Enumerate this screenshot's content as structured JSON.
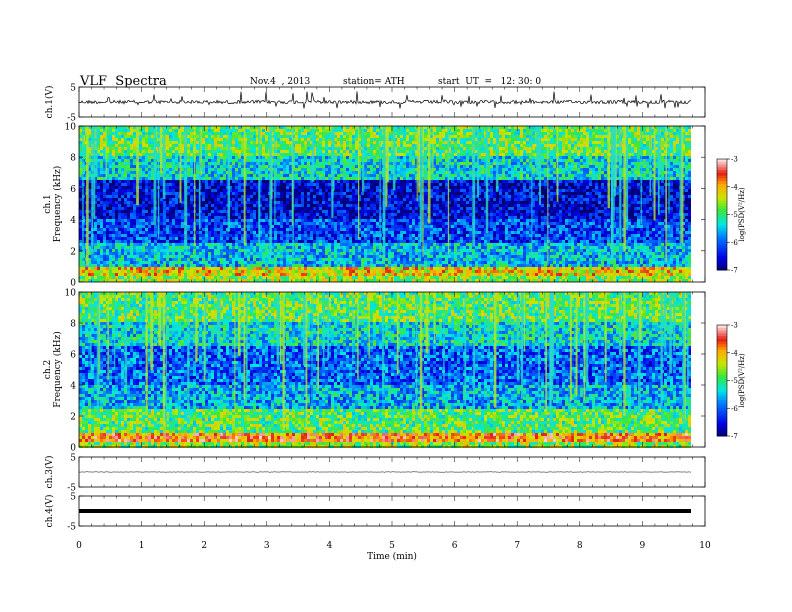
{
  "header": {
    "title": "VLF  Spectra",
    "date": "Nov.4  , 2013",
    "station": "station= ATH",
    "start": "start  UT  =   12: 30: 0"
  },
  "chart_data": [
    {
      "type": "line",
      "panel": "ch1-waveform",
      "ylabel": "ch.1(V)",
      "yticks": [
        "5",
        "-5"
      ],
      "ylim": [
        -5,
        5
      ],
      "xlim": [
        0,
        10
      ],
      "x_extent": 9.8,
      "baseline": 0,
      "color": "#000000"
    },
    {
      "type": "heatmap",
      "panel": "ch1-spectrogram",
      "ylabel": "ch.1",
      "ylabel2": "Frequency  (kHz)",
      "yticks": [
        "0",
        "2",
        "4",
        "6",
        "8",
        "10"
      ],
      "ylim": [
        0,
        10
      ],
      "xlim": [
        0,
        10
      ],
      "x_extent": 9.8,
      "colorbar": {
        "label": "log(PSD(V²/Hz)",
        "ticks": [
          "-3",
          "-4",
          "-5",
          "-6",
          "-7"
        ],
        "range": [
          -7,
          -3
        ]
      }
    },
    {
      "type": "heatmap",
      "panel": "ch2-spectrogram",
      "ylabel": "ch.2",
      "ylabel2": "Frequency  (kHz)",
      "yticks": [
        "0",
        "2",
        "4",
        "6",
        "8",
        "10"
      ],
      "ylim": [
        0,
        10
      ],
      "xlim": [
        0,
        10
      ],
      "x_extent": 9.8,
      "colorbar": {
        "label": "log(PSD(V²/Hz)",
        "ticks": [
          "-3",
          "-4",
          "-5",
          "-6",
          "-7"
        ],
        "range": [
          -7,
          -3
        ]
      }
    },
    {
      "type": "line",
      "panel": "ch3-waveform",
      "ylabel": "ch.3(V)",
      "yticks": [
        "5",
        "-5"
      ],
      "ylim": [
        -5,
        5
      ],
      "xlim": [
        0,
        10
      ],
      "x_extent": 9.8,
      "baseline": 0,
      "color": "#000000"
    },
    {
      "type": "line",
      "panel": "ch4-waveform",
      "ylabel": "ch.4(V)",
      "yticks": [
        "5",
        "-5"
      ],
      "ylim": [
        -5,
        5
      ],
      "xlim": [
        0,
        10
      ],
      "x_extent": 9.8,
      "baseline": 0,
      "color": "#000000"
    }
  ],
  "x_axis": {
    "label": "Time  (min)",
    "ticks": [
      "0",
      "1",
      "2",
      "3",
      "4",
      "5",
      "6",
      "7",
      "8",
      "9",
      "10"
    ]
  }
}
